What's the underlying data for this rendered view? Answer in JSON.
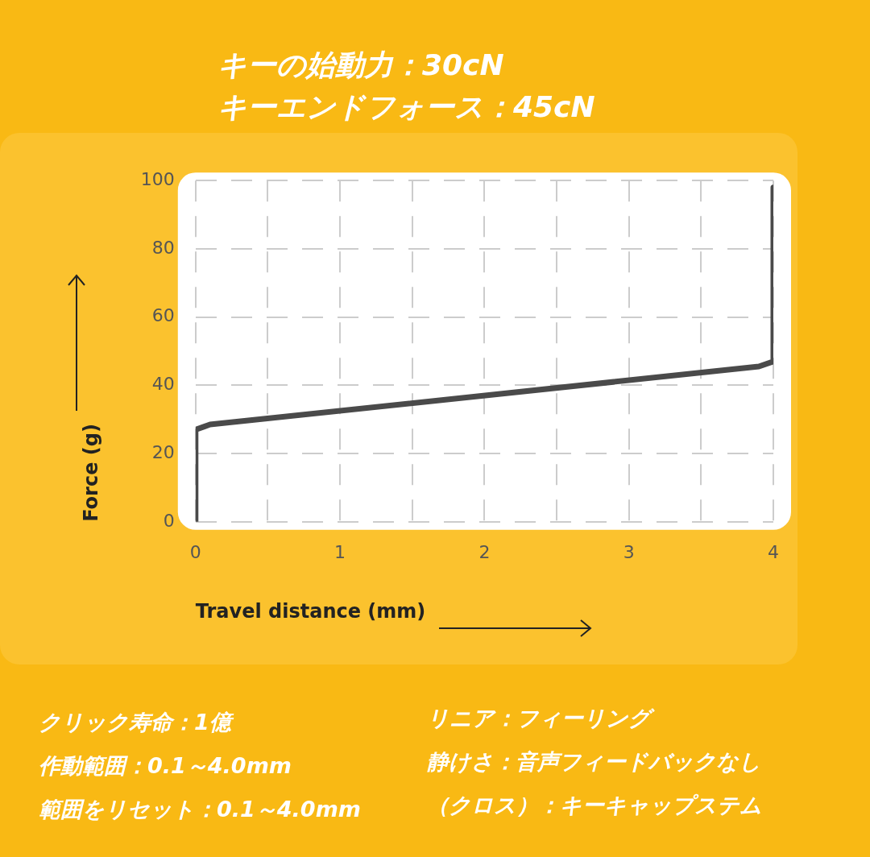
{
  "chart_data": {
    "type": "line",
    "title": "キーの始動力：30cN",
    "subtitle": "キーエンドフォース：45cN",
    "xlabel": "Travel distance (mm)",
    "ylabel": "Force (g)",
    "series": [
      {
        "color": "#4a4a4a",
        "x": [
          0,
          0,
          0.1,
          3.9,
          4,
          4
        ],
        "values": [
          0,
          27,
          28.5,
          45.5,
          47,
          98
        ]
      }
    ],
    "xlim": [
      0,
      4
    ],
    "xticks": [
      0,
      {
        "value": 0.5,
        "label": null
      },
      1,
      {
        "value": 1.5,
        "label": null
      },
      2,
      {
        "value": 2.5,
        "label": null
      },
      3,
      {
        "value": 3.5,
        "label": null
      },
      4
    ],
    "ylim": [
      0,
      100
    ],
    "yticks": [
      0,
      20,
      40,
      60,
      80,
      100
    ],
    "grid": true,
    "legend": false,
    "marker": "none",
    "line_style": "solid",
    "annotations": [
      "クリック寿命：1億",
      "作動範囲：0.1～4.0mm",
      "範囲をリセット：0.1～4.0mm",
      "リニア：フィーリング",
      "静けさ：音声フィードバックなし",
      "（クロス）：キーキャップステム"
    ]
  }
}
